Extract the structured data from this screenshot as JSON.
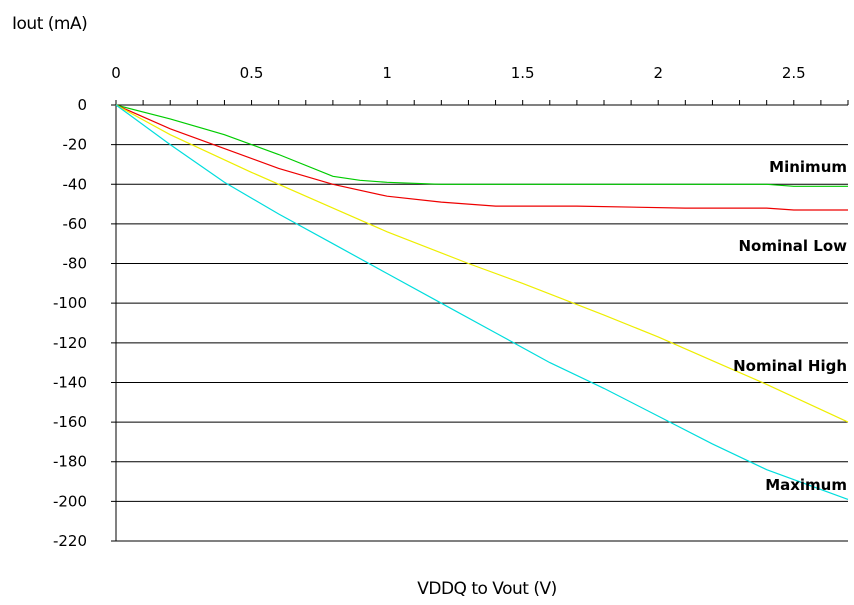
{
  "chart_data": {
    "type": "line",
    "xlabel": "VDDQ to Vout (V)",
    "ylabel": "Iout (mA)",
    "xlim": [
      0,
      2.7
    ],
    "ylim": [
      -220,
      0
    ],
    "x_ticks": [
      0,
      0.5,
      1,
      1.5,
      2,
      2.5
    ],
    "x_tick_labels": [
      "0",
      "0.5",
      "1",
      "1.5",
      "2",
      "2.5"
    ],
    "x_minor_step": 0.1,
    "y_ticks": [
      0,
      -20,
      -40,
      -60,
      -80,
      -100,
      -120,
      -140,
      -160,
      -180,
      -200,
      -220
    ],
    "y_tick_labels": [
      "0",
      "-20",
      "-40",
      "-60",
      "-80",
      "-100",
      "-120",
      "-140",
      "-160",
      "-180",
      "-200",
      "-220"
    ],
    "x_axis_position": "top",
    "grid": "horizontal",
    "series": [
      {
        "name": "Minimum",
        "color": "#00cc00",
        "x": [
          0,
          0.2,
          0.4,
          0.6,
          0.8,
          0.9,
          1.0,
          1.2,
          1.4,
          1.7,
          2.0,
          2.4,
          2.5,
          2.7
        ],
        "y": [
          0,
          -7,
          -15,
          -25,
          -36,
          -38,
          -39,
          -40,
          -40,
          -40,
          -40,
          -40,
          -41,
          -41
        ]
      },
      {
        "name": "Nominal Low",
        "color": "#ee0000",
        "x": [
          0,
          0.2,
          0.4,
          0.6,
          0.8,
          1.0,
          1.2,
          1.4,
          1.7,
          2.1,
          2.4,
          2.5,
          2.7
        ],
        "y": [
          0,
          -12,
          -22,
          -32,
          -40,
          -46,
          -49,
          -51,
          -51,
          -52,
          -52,
          -53,
          -53
        ]
      },
      {
        "name": "Nominal High",
        "color": "#eeee00",
        "x": [
          0,
          0.2,
          0.5,
          0.8,
          1.0,
          1.3,
          1.5,
          1.8,
          2.0,
          2.2,
          2.4,
          2.7
        ],
        "y": [
          0,
          -15,
          -34,
          -52,
          -64,
          -80,
          -90,
          -106,
          -117,
          -129,
          -141,
          -160
        ]
      },
      {
        "name": "Maximum",
        "color": "#00dddd",
        "x": [
          0,
          0.2,
          0.4,
          0.6,
          0.8,
          1.0,
          1.2,
          1.4,
          1.6,
          1.8,
          2.0,
          2.2,
          2.4,
          2.7
        ],
        "y": [
          0,
          -20,
          -39,
          -55,
          -70,
          -85,
          -100,
          -115,
          -130,
          -143,
          -157,
          -171,
          -184,
          -199
        ]
      }
    ],
    "series_labels": [
      "Minimum",
      "Nominal Low",
      "Nominal High",
      "Maximum"
    ]
  }
}
